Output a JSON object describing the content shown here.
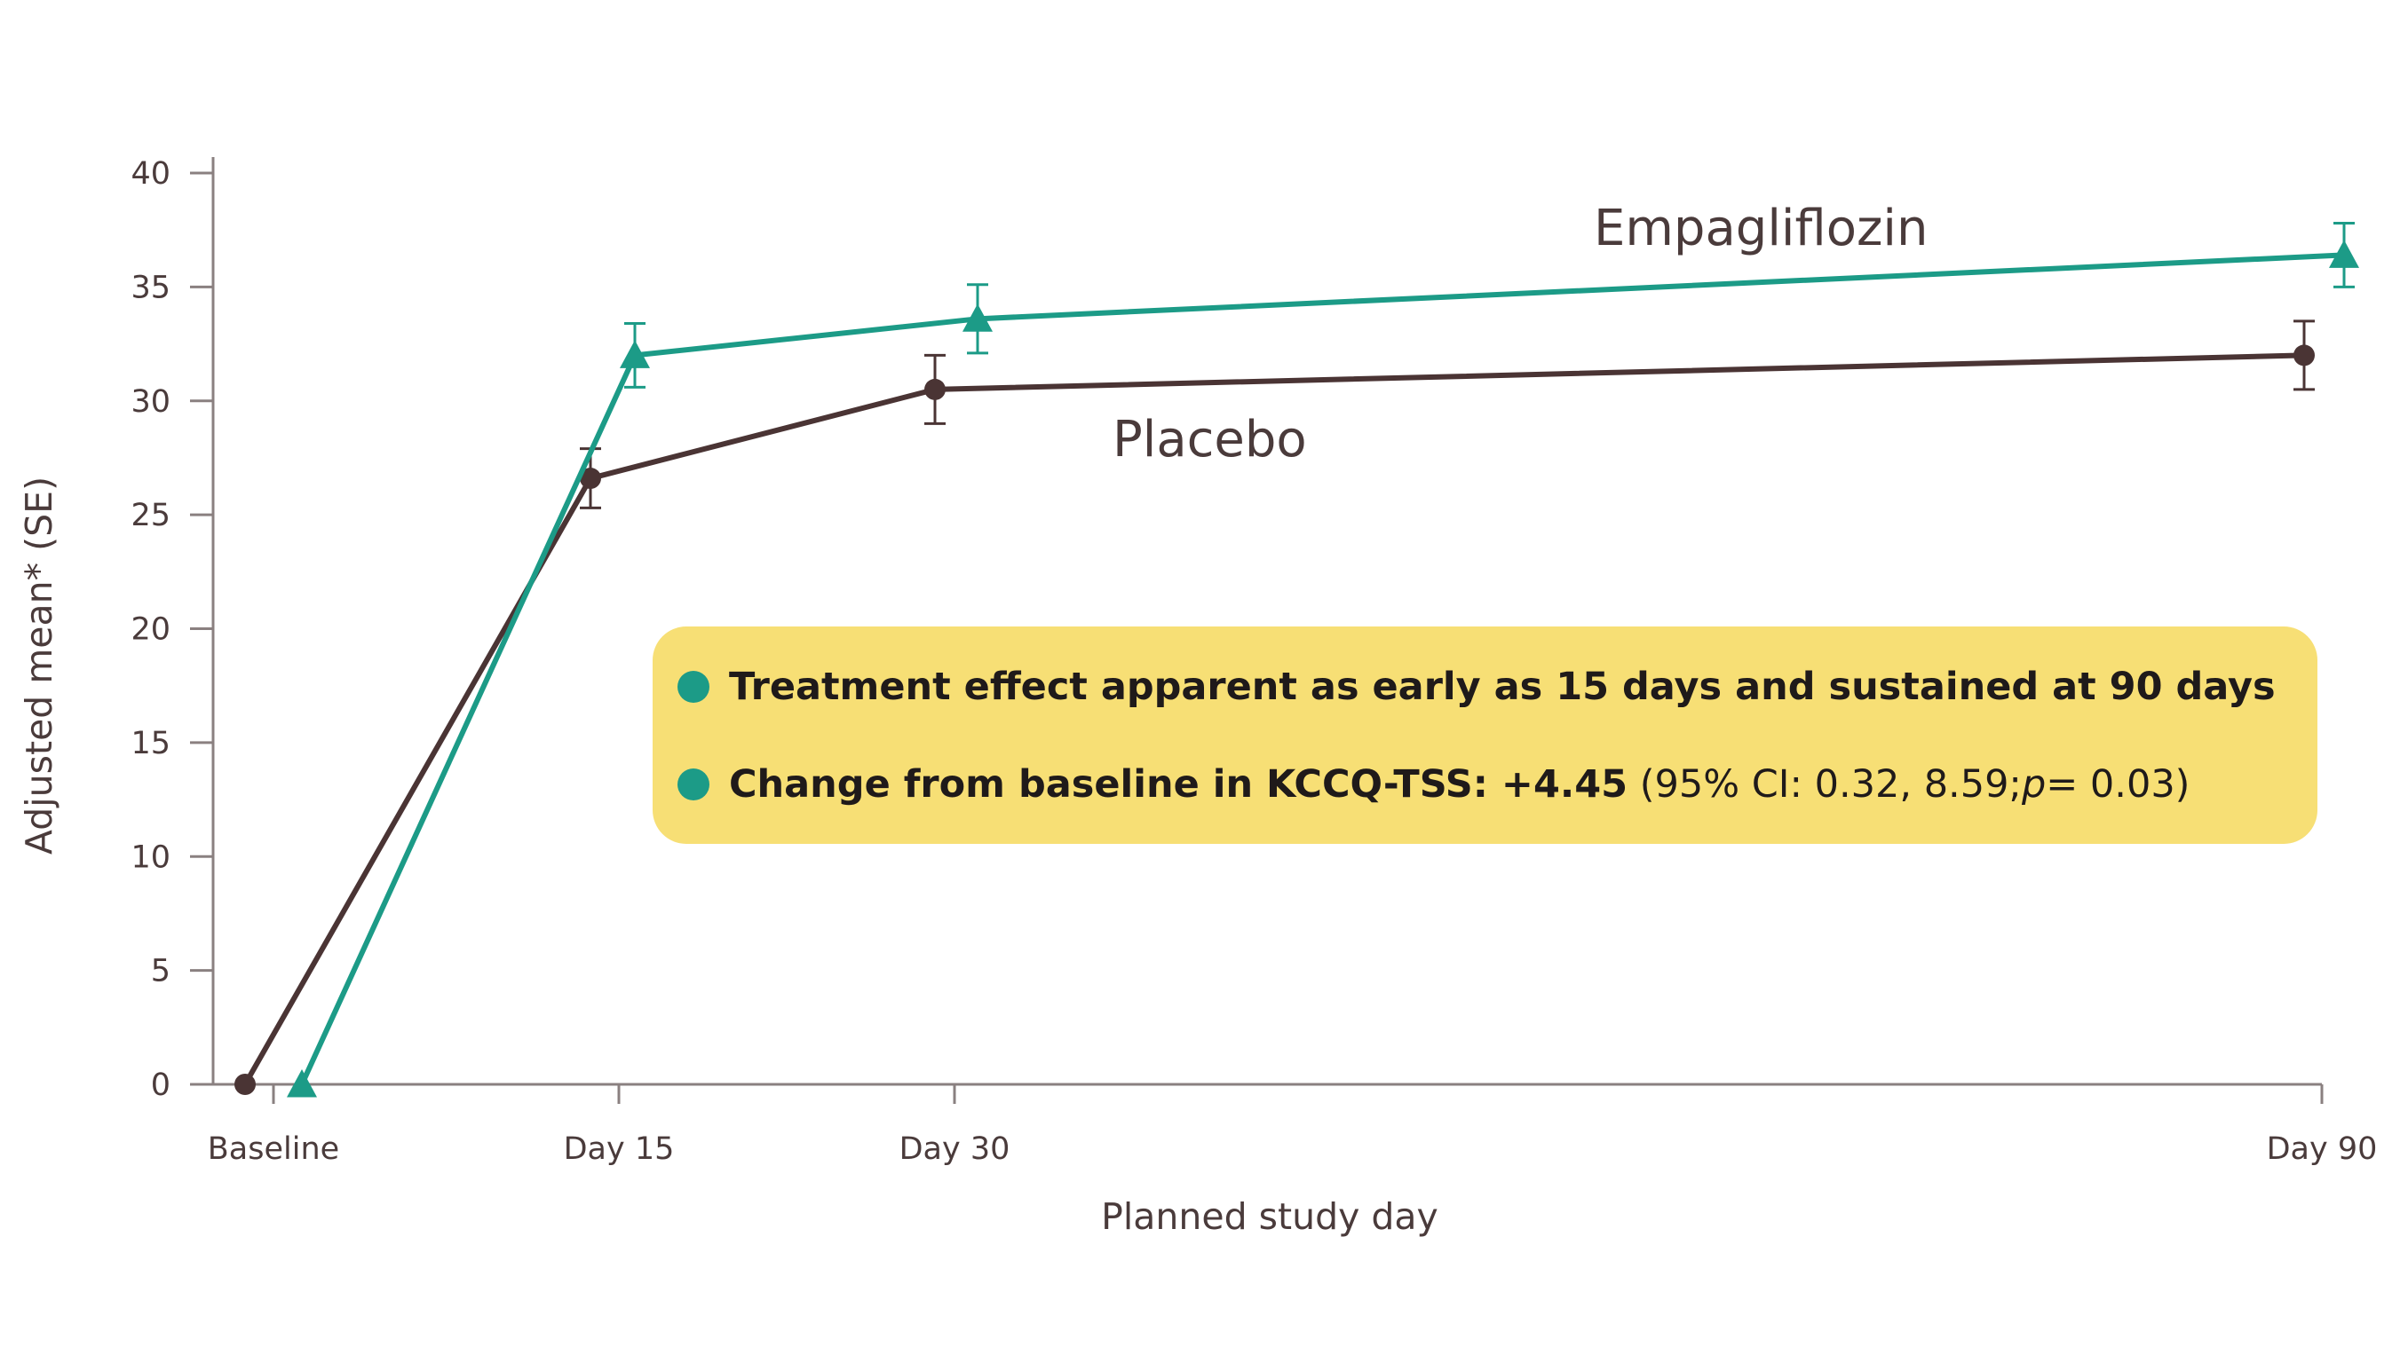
{
  "chart_data": {
    "type": "line",
    "xlabel": "Planned study day",
    "ylabel": "Adjusted mean* (SE)",
    "categories": [
      "Baseline",
      "Day 15",
      "Day 30",
      "Day 90"
    ],
    "ylim": [
      0,
      40
    ],
    "yticks": [
      0,
      5,
      10,
      15,
      20,
      25,
      30,
      35,
      40
    ],
    "series": [
      {
        "name": "Empagliflozin",
        "color": "#1c9b87",
        "marker": "triangle",
        "values": [
          0,
          32.0,
          33.6,
          36.4
        ],
        "se": [
          0,
          1.4,
          1.5,
          1.4
        ]
      },
      {
        "name": "Placebo",
        "color": "#4a3434",
        "marker": "circle",
        "values": [
          0,
          26.6,
          30.5,
          32.0
        ],
        "se": [
          0,
          1.3,
          1.5,
          1.5
        ]
      }
    ]
  },
  "callout": {
    "bullet1": "Treatment effect apparent as early as 15 days and sustained at 90 days",
    "bullet2_bold": "Change from baseline in KCCQ-TSS: +4.45",
    "bullet2_open": "(95% CI: 0.32, 8.59; ",
    "bullet2_p": "p",
    "bullet2_close": "= 0.03)"
  }
}
